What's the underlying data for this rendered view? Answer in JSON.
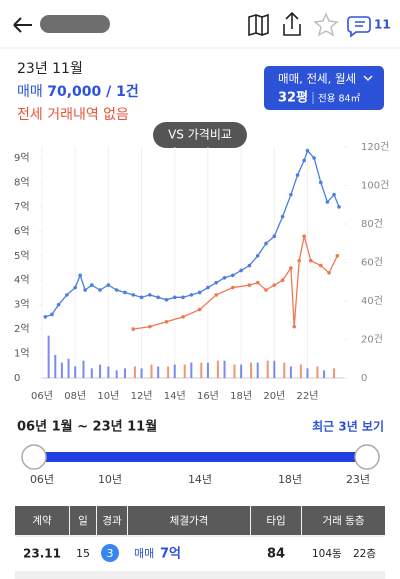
{
  "header": {
    "badge": "11"
  },
  "summary": {
    "month": "23년 11월",
    "sale_prefix": "매매",
    "sale_value": "70,000 / 1건",
    "jeonse": "전세 거래내역 없음",
    "filter": "매매, 전세, 월세",
    "size": "32평",
    "area": "전용 84㎡"
  },
  "compare_button": "VS 가격비교",
  "chart_data": {
    "type": "line",
    "xlim": [
      2006,
      2024.2
    ],
    "xticks": [
      {
        "value": 2006,
        "label": "06년"
      },
      {
        "value": 2008,
        "label": "08년"
      },
      {
        "value": 2010,
        "label": "10년"
      },
      {
        "value": 2012,
        "label": "12년"
      },
      {
        "value": 2014,
        "label": "14년"
      },
      {
        "value": 2016,
        "label": "16년"
      },
      {
        "value": 2018,
        "label": "18년"
      },
      {
        "value": 2020,
        "label": "20년"
      },
      {
        "value": 2022,
        "label": "22년"
      }
    ],
    "ylim": [
      0,
      9.45
    ],
    "yticks": [
      0,
      {
        "value": 1,
        "label": "1억"
      },
      {
        "value": 2,
        "label": "2억"
      },
      {
        "value": 3,
        "label": "3억"
      },
      {
        "value": 4,
        "label": "4억"
      },
      {
        "value": 5,
        "label": "5억"
      },
      {
        "value": 6,
        "label": "6억"
      },
      {
        "value": 7,
        "label": "7억"
      },
      {
        "value": 8,
        "label": "8억"
      },
      {
        "value": 9,
        "label": "9억"
      }
    ],
    "y2lim": [
      0,
      120
    ],
    "y2ticks": [
      0,
      {
        "value": 20,
        "label": "20건"
      },
      {
        "value": 40,
        "label": "40건"
      },
      {
        "value": 60,
        "label": "60건"
      },
      {
        "value": 80,
        "label": "80건"
      },
      {
        "value": 100,
        "label": "100건"
      },
      {
        "value": 120,
        "label": "120건"
      }
    ],
    "grid": true,
    "series": [
      {
        "type": "bar",
        "axis": "y2",
        "color": "#5b6cf0",
        "x": [
          2006.4,
          2006.8,
          2007.2,
          2007.6,
          2008.0,
          2008.5,
          2009,
          2009.5,
          2010,
          2010.5,
          2011,
          2012,
          2013,
          2014,
          2015,
          2016,
          2017,
          2018,
          2019,
          2020,
          2021,
          2022,
          2023
        ],
        "values": [
          22,
          12,
          8,
          10,
          6,
          9,
          5,
          7,
          6,
          4,
          5,
          5,
          6,
          7,
          8,
          8,
          9,
          7,
          8,
          9,
          6,
          5,
          4
        ]
      },
      {
        "type": "bar",
        "axis": "y2",
        "color": "#f07850",
        "x": [
          2011.6,
          2012.6,
          2013.6,
          2014.6,
          2015.6,
          2016.6,
          2017.6,
          2018.6,
          2019.6,
          2020.6,
          2021.6,
          2022.6,
          2023.6
        ],
        "values": [
          6,
          7,
          6,
          7,
          8,
          9,
          7,
          8,
          9,
          8,
          7,
          6,
          5
        ]
      },
      {
        "type": "line",
        "axis": "y",
        "color": "#4a7fe0",
        "x": [
          2006.2,
          2006.6,
          2007.0,
          2007.5,
          2008.0,
          2008.3,
          2008.6,
          2009.0,
          2009.5,
          2010.0,
          2010.5,
          2011.0,
          2011.5,
          2012.0,
          2012.5,
          2013.0,
          2013.5,
          2014.0,
          2014.5,
          2015.0,
          2015.5,
          2016.0,
          2016.5,
          2017.0,
          2017.5,
          2018.0,
          2018.5,
          2019.0,
          2019.5,
          2020.0,
          2020.5,
          2021.0,
          2021.4,
          2021.8,
          2022.0,
          2022.4,
          2022.8,
          2023.2,
          2023.6,
          2023.9
        ],
        "values": [
          2.5,
          2.6,
          3.0,
          3.4,
          3.7,
          4.2,
          3.6,
          3.8,
          3.6,
          3.8,
          3.6,
          3.5,
          3.4,
          3.3,
          3.4,
          3.3,
          3.2,
          3.3,
          3.3,
          3.4,
          3.5,
          3.7,
          3.9,
          4.1,
          4.2,
          4.4,
          4.6,
          5.0,
          5.5,
          5.8,
          6.6,
          7.5,
          8.3,
          8.9,
          9.3,
          9.0,
          8.0,
          7.2,
          7.5,
          7.0
        ]
      },
      {
        "type": "line",
        "axis": "y",
        "color": "#f07850",
        "x": [
          2011.5,
          2012.5,
          2013.5,
          2014.5,
          2015.5,
          2016.5,
          2017.5,
          2018.5,
          2019.0,
          2019.5,
          2020.0,
          2020.5,
          2021.0,
          2021.2,
          2021.5,
          2021.8,
          2022.2,
          2022.8,
          2023.3,
          2023.8
        ],
        "values": [
          2.0,
          2.1,
          2.3,
          2.5,
          2.8,
          3.4,
          3.7,
          3.8,
          3.9,
          3.6,
          3.8,
          4.0,
          4.5,
          2.1,
          4.8,
          5.8,
          4.8,
          4.6,
          4.3,
          5.0
        ]
      }
    ]
  },
  "period": {
    "range": "06년 1월 ~ 23년 11월",
    "recent": "최근 3년 보기",
    "labels": [
      "06년",
      "10년",
      "14년",
      "18년",
      "23년"
    ]
  },
  "table": {
    "headers": [
      "계약",
      "일",
      "경과",
      "체결가격",
      "타입",
      "거래 동층"
    ],
    "rows": [
      [
        "23.11",
        "15",
        "3",
        "매매",
        "7억",
        "84",
        "104동",
        "22층"
      ]
    ]
  }
}
